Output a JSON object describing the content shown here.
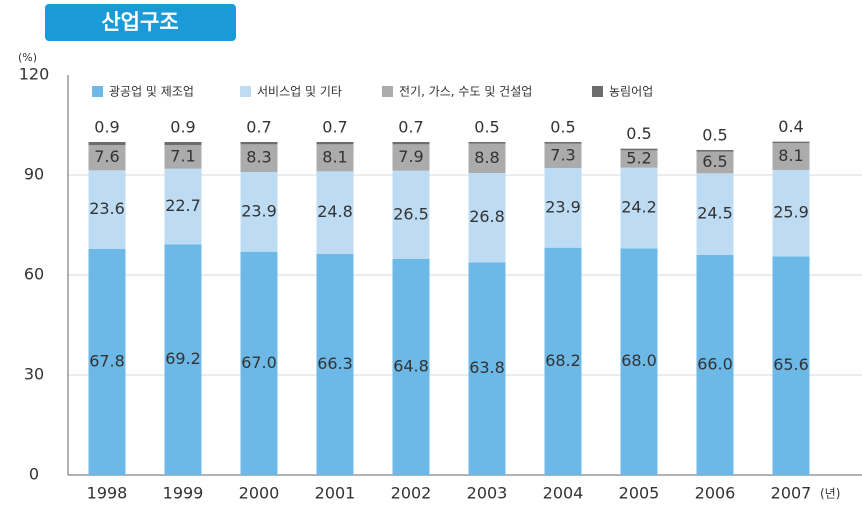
{
  "chart_data": {
    "type": "stacked_bar",
    "title": "산업구조",
    "y_unit": "(%)",
    "x_unit": "(년)",
    "categories": [
      "1998",
      "1999",
      "2000",
      "2001",
      "2002",
      "2003",
      "2004",
      "2005",
      "2006",
      "2007"
    ],
    "series": [
      {
        "name": "광공업 및 제조업",
        "color": "#6cb8e6",
        "values": [
          67.8,
          69.2,
          67.0,
          66.3,
          64.8,
          63.8,
          68.2,
          68.0,
          66.0,
          65.6
        ],
        "value_labels": [
          "67.8",
          "69.2",
          "67.0",
          "66.3",
          "64.8",
          "63.8",
          "68.2",
          "68.0",
          "66.0",
          "65.6"
        ]
      },
      {
        "name": "서비스업 및 기타",
        "color": "#bddcf4",
        "values": [
          23.6,
          22.7,
          23.9,
          24.8,
          26.5,
          26.8,
          23.9,
          24.2,
          24.5,
          25.9
        ],
        "value_labels": [
          "23.6",
          "22.7",
          "23.9",
          "24.8",
          "26.5",
          "26.8",
          "23.9",
          "24.2",
          "24.5",
          "25.9"
        ]
      },
      {
        "name": "전기, 가스, 수도 및 건설업",
        "color": "#ababab",
        "values": [
          7.6,
          7.1,
          8.3,
          8.1,
          7.9,
          8.8,
          7.3,
          5.2,
          6.5,
          8.1
        ],
        "value_labels": [
          "7.6",
          "7.1",
          "8.3",
          "8.1",
          "7.9",
          "8.8",
          "7.3",
          "5.2",
          "6.5",
          "8.1"
        ]
      },
      {
        "name": "농림어업",
        "color": "#6d6d6d",
        "values": [
          0.9,
          0.9,
          0.7,
          0.7,
          0.7,
          0.5,
          0.5,
          0.5,
          0.5,
          0.4
        ],
        "value_labels": [
          "0.9",
          "0.9",
          "0.7",
          "0.7",
          "0.7",
          "0.5",
          "0.5",
          "0.5",
          "0.5",
          "0.4"
        ]
      }
    ],
    "ylim": [
      0,
      120
    ],
    "yticks": [
      0,
      30,
      60,
      90,
      120
    ],
    "grid": true,
    "legend": "top"
  }
}
